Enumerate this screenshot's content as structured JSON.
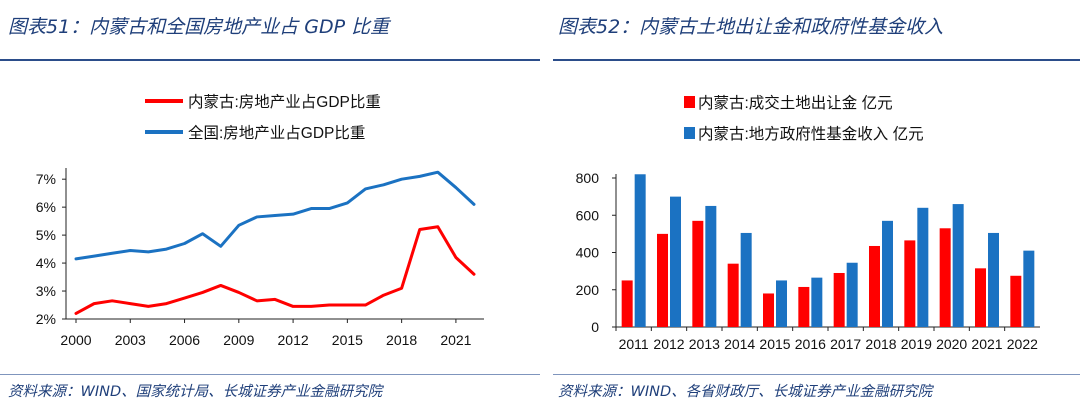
{
  "left_panel": {
    "title": "图表51：内蒙古和全国房地产业占 GDP 比重",
    "source": "资料来源：WIND、国家统计局、长城证券产业金融研究院"
  },
  "right_panel": {
    "title": "图表52：内蒙古土地出让金和政府性基金收入",
    "source": "资料来源：WIND、各省财政厅、长城证券产业金融研究院"
  },
  "colors": {
    "red": "#ff0000",
    "blue": "#1b72c2",
    "title": "#1f3f7a",
    "rule": "#2b4d8a"
  },
  "chart_data": [
    {
      "type": "line",
      "title": "内蒙古和全国房地产业占 GDP 比重",
      "x": [
        2000,
        2001,
        2002,
        2003,
        2004,
        2005,
        2006,
        2007,
        2008,
        2009,
        2010,
        2011,
        2012,
        2013,
        2014,
        2015,
        2016,
        2017,
        2018,
        2019,
        2020,
        2021,
        2022
      ],
      "series": [
        {
          "name": "内蒙古:房地产业占GDP比重",
          "color": "#ff0000",
          "values": [
            2.2,
            2.55,
            2.65,
            2.55,
            2.45,
            2.55,
            2.75,
            2.95,
            3.2,
            2.95,
            2.65,
            2.7,
            2.45,
            2.45,
            2.5,
            2.5,
            2.5,
            2.85,
            3.1,
            5.2,
            5.3,
            4.2,
            3.6
          ]
        },
        {
          "name": "全国:房地产业占GDP比重",
          "color": "#1b72c2",
          "values": [
            4.15,
            4.25,
            4.35,
            4.45,
            4.4,
            4.5,
            4.7,
            5.05,
            4.6,
            5.35,
            5.65,
            5.7,
            5.75,
            5.95,
            5.95,
            6.15,
            6.65,
            6.8,
            7.0,
            7.1,
            7.25,
            6.7,
            6.1
          ]
        }
      ],
      "ylim": [
        2,
        7.4
      ],
      "yticks": [
        2,
        3,
        4,
        5,
        6,
        7
      ],
      "ytick_labels": [
        "2%",
        "3%",
        "4%",
        "5%",
        "6%",
        "7%"
      ],
      "xticks": [
        2000,
        2003,
        2006,
        2009,
        2012,
        2015,
        2018,
        2021
      ],
      "xtick_labels": [
        "2000",
        "2003",
        "2006",
        "2009",
        "2012",
        "2015",
        "2018",
        "2021"
      ],
      "legend": "top-center"
    },
    {
      "type": "bar",
      "title": "内蒙古土地出让金和政府性基金收入",
      "categories": [
        "2011",
        "2012",
        "2013",
        "2014",
        "2015",
        "2016",
        "2017",
        "2018",
        "2019",
        "2020",
        "2021",
        "2022"
      ],
      "series": [
        {
          "name": "内蒙古:成交土地出让金 亿元",
          "color": "#ff0000",
          "values": [
            250,
            500,
            570,
            340,
            180,
            215,
            290,
            435,
            465,
            530,
            315,
            275
          ]
        },
        {
          "name": "内蒙古:地方政府性基金收入 亿元",
          "color": "#1b72c2",
          "values": [
            820,
            700,
            650,
            505,
            250,
            265,
            345,
            570,
            640,
            660,
            505,
            410
          ]
        }
      ],
      "ylim": [
        0,
        800
      ],
      "yticks": [
        0,
        200,
        400,
        600,
        800
      ],
      "ytick_labels": [
        "0",
        "200",
        "400",
        "600",
        "800"
      ],
      "legend": "top-left"
    }
  ]
}
